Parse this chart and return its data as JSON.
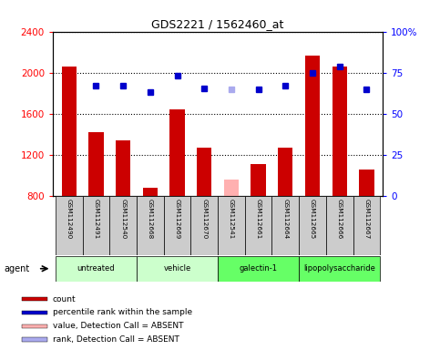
{
  "title": "GDS2221 / 1562460_at",
  "samples": [
    "GSM112490",
    "GSM112491",
    "GSM112540",
    "GSM112668",
    "GSM112669",
    "GSM112670",
    "GSM112541",
    "GSM112661",
    "GSM112664",
    "GSM112665",
    "GSM112666",
    "GSM112667"
  ],
  "bar_values": [
    2060,
    1420,
    1340,
    880,
    1640,
    1270,
    null,
    1110,
    1270,
    2170,
    2060,
    1060
  ],
  "bar_absent": [
    null,
    null,
    null,
    null,
    null,
    null,
    960,
    null,
    null,
    null,
    null,
    null
  ],
  "dot_values": [
    null,
    1870,
    1870,
    1810,
    1970,
    1850,
    null,
    1840,
    1870,
    2000,
    2060,
    1840
  ],
  "dot_absent": [
    null,
    null,
    null,
    null,
    null,
    null,
    1840,
    null,
    null,
    null,
    null,
    null
  ],
  "bar_color": "#cc0000",
  "bar_absent_color": "#ffb0b0",
  "dot_color": "#0000cc",
  "dot_absent_color": "#aaaaee",
  "ylim_left": [
    800,
    2400
  ],
  "ylim_right": [
    0,
    100
  ],
  "yticks_left": [
    800,
    1200,
    1600,
    2000,
    2400
  ],
  "yticks_right": [
    0,
    25,
    50,
    75,
    100
  ],
  "ytick_right_labels": [
    "0",
    "25",
    "50",
    "75",
    "100%"
  ],
  "groups": [
    {
      "label": "untreated",
      "start": 0,
      "end": 3,
      "color": "#ccffcc"
    },
    {
      "label": "vehicle",
      "start": 3,
      "end": 6,
      "color": "#ccffcc"
    },
    {
      "label": "galectin-1",
      "start": 6,
      "end": 9,
      "color": "#66ff66"
    },
    {
      "label": "lipopolysaccharide",
      "start": 9,
      "end": 12,
      "color": "#66ff66"
    }
  ],
  "agent_label": "agent",
  "legend_items": [
    {
      "color": "#cc0000",
      "label": "count"
    },
    {
      "color": "#0000cc",
      "label": "percentile rank within the sample"
    },
    {
      "color": "#ffb0b0",
      "label": "value, Detection Call = ABSENT"
    },
    {
      "color": "#aaaaee",
      "label": "rank, Detection Call = ABSENT"
    }
  ],
  "sample_box_color": "#cccccc",
  "grid_color": "black"
}
